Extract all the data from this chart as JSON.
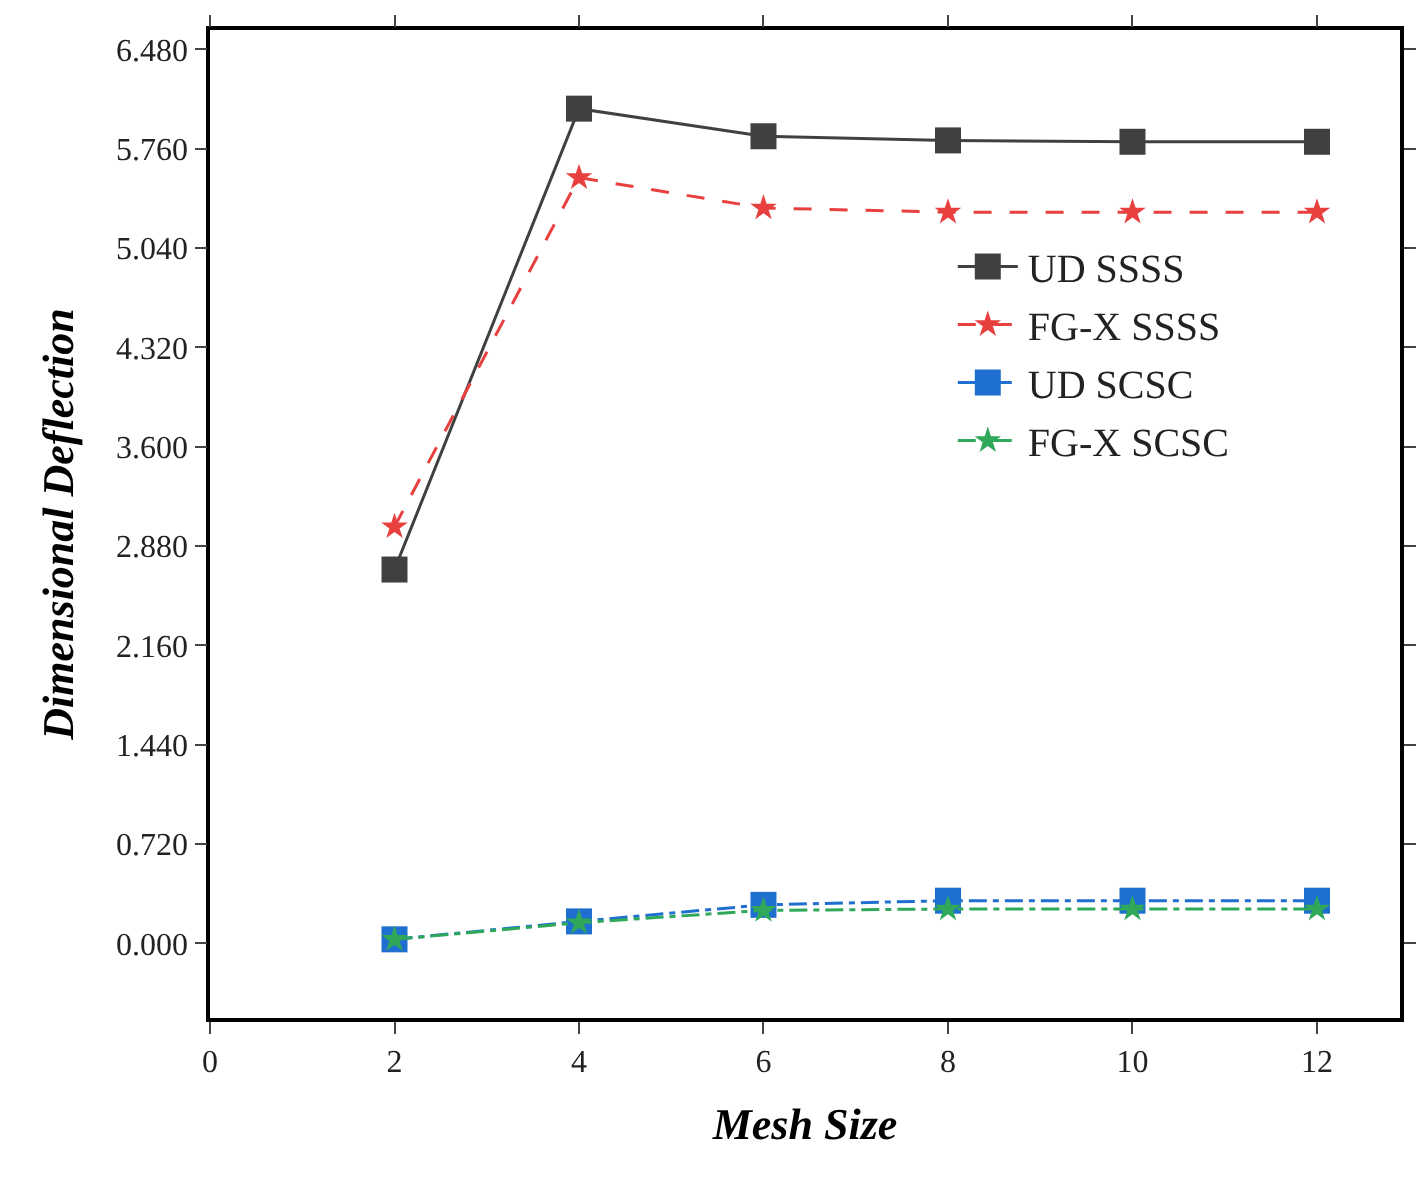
{
  "chart_data": {
    "type": "line",
    "xlabel": "Mesh Size",
    "ylabel": "Dimensional Deflection",
    "x": [
      2,
      4,
      6,
      8,
      10,
      12
    ],
    "series": [
      {
        "name": "UD SSSS",
        "color": "#404040",
        "values": [
          2.71,
          6.05,
          5.85,
          5.82,
          5.81,
          5.81
        ],
        "marker": "square",
        "line_style": "solid"
      },
      {
        "name": "FG-X SSSS",
        "color": "#e8403f",
        "values": [
          3.02,
          5.55,
          5.33,
          5.3,
          5.3,
          5.3
        ],
        "marker": "star",
        "line_style": "dashed"
      },
      {
        "name": "UD SCSC",
        "color": "#1f6fd0",
        "values": [
          0.03,
          0.16,
          0.28,
          0.31,
          0.31,
          0.31
        ],
        "marker": "square",
        "line_style": "dashdot"
      },
      {
        "name": "FG-X SCSC",
        "color": "#2fa85a",
        "values": [
          0.03,
          0.15,
          0.24,
          0.25,
          0.25,
          0.25
        ],
        "marker": "star",
        "line_style": "dashdot"
      }
    ],
    "xlim": [
      0,
      12.9
    ],
    "xticks": [
      0,
      2,
      4,
      6,
      8,
      10,
      12
    ],
    "ylim": [
      -0.54,
      6.62
    ],
    "yticks": [
      {
        "value": 0,
        "label": "0.000"
      },
      {
        "value": 0.72,
        "label": "0.720"
      },
      {
        "value": 1.44,
        "label": "1.440"
      },
      {
        "value": 2.16,
        "label": "2.160"
      },
      {
        "value": 2.88,
        "label": "2.880"
      },
      {
        "value": 3.6,
        "label": "3.600"
      },
      {
        "value": 4.32,
        "label": "4.320"
      },
      {
        "value": 5.04,
        "label": "5.040"
      },
      {
        "value": 5.76,
        "label": "5.760"
      },
      {
        "value": 6.48,
        "label": "6.480"
      }
    ],
    "legend": "right"
  }
}
